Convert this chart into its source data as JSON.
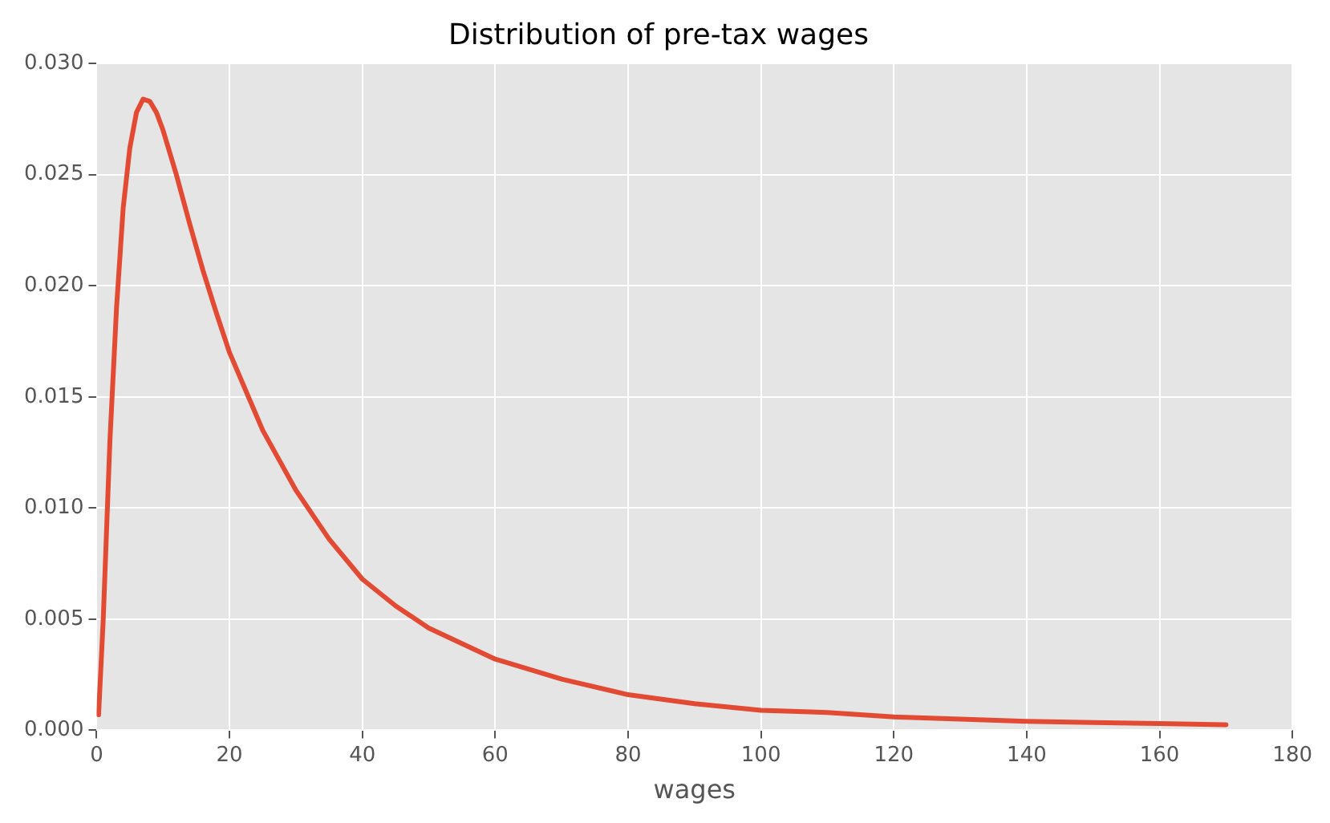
{
  "chart_data": {
    "type": "line",
    "title": "Distribution of pre-tax wages",
    "xlabel": "wages",
    "x": [
      0.3,
      1,
      2,
      3,
      4,
      5,
      6,
      7,
      8,
      9,
      10,
      12,
      14,
      16,
      18,
      20,
      25,
      30,
      35,
      40,
      45,
      50,
      60,
      70,
      80,
      90,
      100,
      110,
      120,
      130,
      140,
      150,
      160,
      170
    ],
    "series": [
      {
        "color": "#e24a33",
        "values": [
          0.0007,
          0.005,
          0.013,
          0.019,
          0.0235,
          0.0262,
          0.0278,
          0.0284,
          0.0283,
          0.0278,
          0.027,
          0.025,
          0.0228,
          0.0207,
          0.0188,
          0.017,
          0.0135,
          0.0108,
          0.0086,
          0.0068,
          0.0056,
          0.0046,
          0.0032,
          0.0023,
          0.0016,
          0.0012,
          0.0009,
          0.0008,
          0.0006,
          0.0005,
          0.0004,
          0.00035,
          0.0003,
          0.00025
        ]
      }
    ],
    "xlim": [
      0,
      180
    ],
    "xticks": [
      0,
      20,
      40,
      60,
      80,
      100,
      120,
      140,
      160,
      180
    ],
    "ylim": [
      0,
      0.03
    ],
    "yticks": [
      {
        "value": 0,
        "label": "0.000"
      },
      {
        "value": 0.005,
        "label": "0.005"
      },
      {
        "value": 0.01,
        "label": "0.010"
      },
      {
        "value": 0.015,
        "label": "0.015"
      },
      {
        "value": 0.02,
        "label": "0.020"
      },
      {
        "value": 0.025,
        "label": "0.025"
      },
      {
        "value": 0.03,
        "label": "0.030"
      }
    ],
    "grid": true,
    "legend": false,
    "marker": "none",
    "line_style": "solid"
  }
}
